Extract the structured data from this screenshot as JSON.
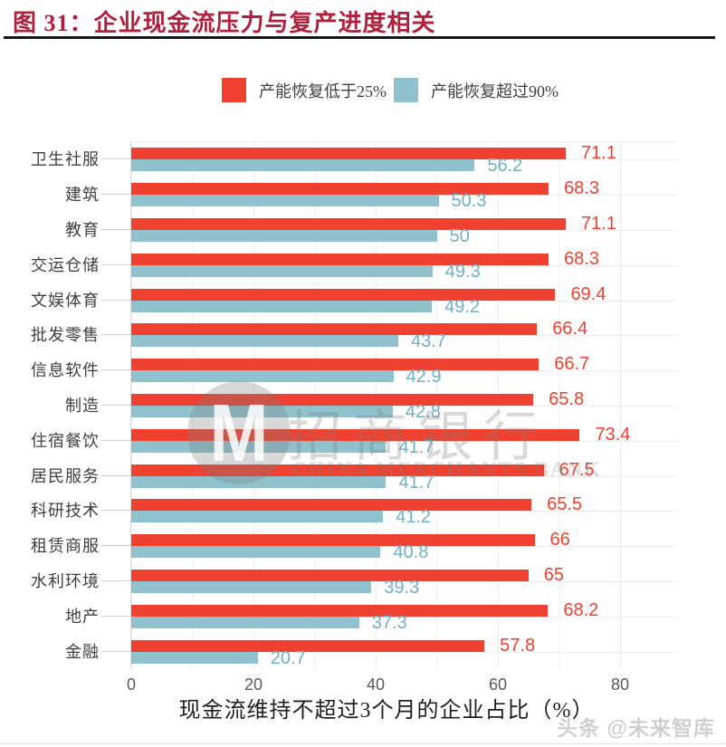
{
  "header": {
    "title": "图 31：企业现金流压力与复产进度相关"
  },
  "chart_data": {
    "type": "bar",
    "orientation": "horizontal",
    "title": "",
    "xlabel": "现金流维持不超过3个月的企业占比（%）",
    "ylabel": "",
    "x_ticks": [
      0,
      20,
      40,
      60,
      80
    ],
    "xlim": [
      0,
      90
    ],
    "grid": true,
    "legend_position": "top",
    "categories": [
      "卫生社服",
      "建筑",
      "教育",
      "交运仓储",
      "文娱体育",
      "批发零售",
      "信息软件",
      "制造",
      "住宿餐饮",
      "居民服务",
      "科研技术",
      "租赁商服",
      "水利环境",
      "地产",
      "金融"
    ],
    "series": [
      {
        "name": "产能恢复低于25%",
        "color": "#ee4130",
        "values": [
          71.1,
          68.3,
          71.1,
          68.3,
          69.4,
          66.4,
          66.7,
          65.8,
          73.4,
          67.5,
          65.5,
          66,
          65,
          68.2,
          57.8
        ]
      },
      {
        "name": "产能恢复超过90%",
        "color": "#8fc2cd",
        "values": [
          56.2,
          50.3,
          50,
          49.3,
          49.2,
          43.7,
          42.9,
          42.8,
          41.7,
          41.7,
          41.2,
          40.8,
          39.3,
          37.3,
          20.7
        ]
      }
    ]
  },
  "watermark": {
    "logo_letter": "M",
    "cn": "招商银行",
    "en": "CHINA MERCHANTS BANK"
  },
  "footer": {
    "credit": "头条 @未来智库"
  }
}
